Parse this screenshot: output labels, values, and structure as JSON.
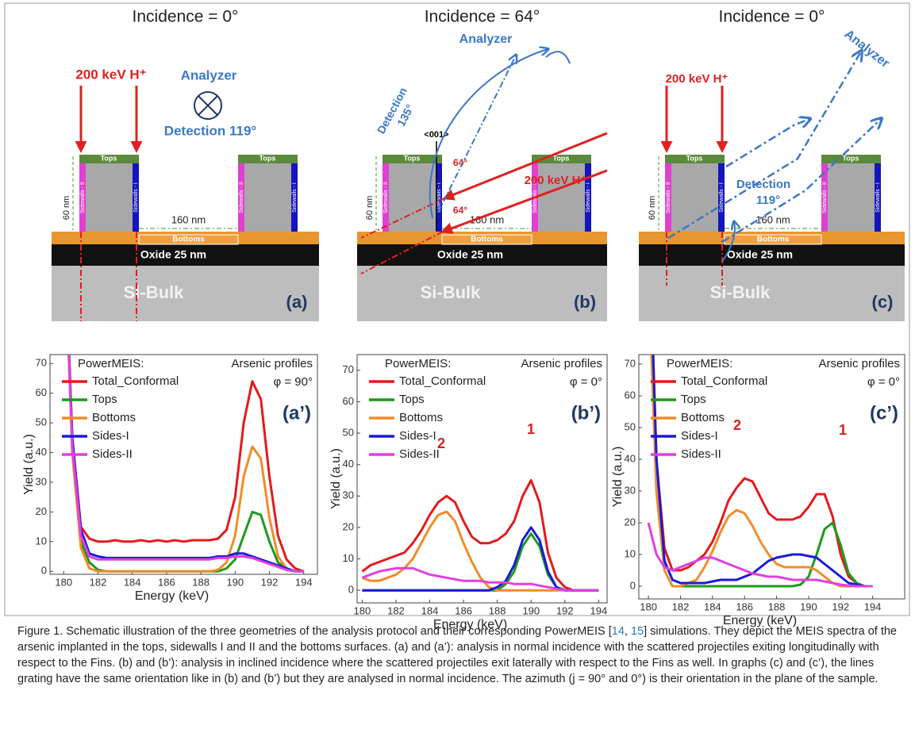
{
  "schematics": [
    {
      "incidence": "Incidence = 0°",
      "beam": "200 keV H⁺",
      "analyzer": "Analyzer",
      "detection": [
        "Detection 119°"
      ],
      "tops": [
        "Tops",
        "Tops"
      ],
      "sidewalls_1": [
        "Sidewalls - I",
        "Sidewalls - I"
      ],
      "sidewalls_2": [
        "Sidewalls - II",
        "Sidewalls - II"
      ],
      "height": "60 nm",
      "pitch": "160 nm",
      "bottoms": "Bottoms",
      "oxide": "Oxide 25 nm",
      "bulk": "Si-Bulk",
      "label": "(a)"
    },
    {
      "incidence": "Incidence = 64°",
      "beam": "200 keV H⁺",
      "analyzer": "Analyzer",
      "detection": [
        "Detection",
        "135°"
      ],
      "tops": [
        "Tops",
        "Tops"
      ],
      "sidewalls_1": [
        "Sidewalls - I",
        "Sidewalls - I"
      ],
      "sidewalls_2": [
        "Sidewalls - II",
        "Sidewalls - II"
      ],
      "height": "60 nm",
      "pitch": "160 nm",
      "bottoms": "Bottoms",
      "oxide": "Oxide 25 nm",
      "bulk": "Si-Bulk",
      "label": "(b)",
      "axis": "<001>",
      "angles": [
        "64°",
        "64°"
      ]
    },
    {
      "incidence": "Incidence = 0°",
      "beam": "200 keV H⁺",
      "analyzer": "Analyzer",
      "detection": [
        "Detection",
        "119°"
      ],
      "tops": [
        "Tops",
        "Tops"
      ],
      "sidewalls_1": [
        "Sidewalls - I",
        "Sidewalls - I"
      ],
      "sidewalls_2": [
        "Sidewalls - II",
        "Sidewalls - II"
      ],
      "height": "60 nm",
      "pitch": "160 nm",
      "bottoms": "Bottoms",
      "oxide": "Oxide 25 nm",
      "bulk": "Si-Bulk",
      "label": "(c)"
    }
  ],
  "chart_data": [
    {
      "type": "line",
      "x_label": "Energy (keV)",
      "y_label": "Yield (a.u.)",
      "legend_title": "PowerMEIS:",
      "legend_position": "upper left",
      "annotations": [
        "Arsenic profiles",
        "φ = 90°"
      ],
      "panel_label": "(a’)",
      "xlim": [
        179.2,
        194.8
      ],
      "ylim": [
        -1,
        73
      ],
      "xticks": [
        180,
        182,
        184,
        186,
        188,
        190,
        192,
        194
      ],
      "yticks": [
        0,
        10,
        20,
        30,
        40,
        50,
        60,
        70
      ],
      "x": [
        180,
        180.5,
        181,
        181.5,
        182,
        182.5,
        183,
        183.5,
        184,
        184.5,
        185,
        185.5,
        186,
        186.5,
        187,
        187.5,
        188,
        188.5,
        189,
        189.5,
        190,
        190.5,
        191,
        191.5,
        192,
        192.5,
        193,
        193.5,
        194
      ],
      "series": [
        {
          "name": "Total_Conformal",
          "color": "#e31a1c",
          "values": [
            120,
            45,
            15,
            11,
            10,
            10,
            10.5,
            10,
            10,
            10.5,
            10,
            10.5,
            10,
            10.5,
            10,
            10.5,
            10.5,
            10.5,
            11,
            14,
            25,
            50,
            64,
            58,
            32,
            12,
            4,
            1,
            0
          ]
        },
        {
          "name": "Tops",
          "color": "#1c9a1c",
          "values": [
            120,
            40,
            10,
            3,
            0.5,
            0,
            0,
            0,
            0,
            0,
            0,
            0,
            0,
            0,
            0,
            0,
            0,
            0,
            0,
            1,
            4,
            12,
            20,
            19,
            10,
            3,
            1,
            0,
            0
          ]
        },
        {
          "name": "Bottoms",
          "color": "#f28c28",
          "values": [
            120,
            40,
            8,
            1,
            0,
            0,
            0,
            0,
            0,
            0,
            0,
            0,
            0,
            0,
            0,
            0,
            0,
            0,
            0.5,
            3,
            12,
            32,
            42,
            38,
            18,
            5,
            1,
            0,
            0
          ]
        },
        {
          "name": "Sides-I",
          "color": "#1a1ad8",
          "values": [
            120,
            45,
            14,
            6,
            5,
            4.5,
            4.5,
            4.5,
            4.5,
            4.5,
            4.5,
            4.5,
            4.5,
            4.5,
            4.5,
            4.5,
            4.5,
            4.5,
            5,
            5,
            6,
            6,
            5,
            4,
            3,
            2,
            1,
            0,
            0
          ]
        },
        {
          "name": "Sides-II",
          "color": "#e040e0",
          "values": [
            120,
            42,
            12,
            5,
            4,
            4,
            4,
            4,
            4,
            4,
            4,
            4,
            4,
            4,
            4,
            4,
            4,
            4,
            4.5,
            4.5,
            5,
            5,
            4.5,
            3.5,
            2.5,
            1.5,
            0.5,
            0,
            0
          ]
        }
      ]
    },
    {
      "type": "line",
      "x_label": "Energy (keV)",
      "y_label": "Yield (a.u.)",
      "legend_title": "PowerMEIS:",
      "legend_position": "upper left",
      "annotations": [
        "Arsenic profiles",
        "φ = 0°"
      ],
      "panel_label": "(b’)",
      "peak_labels": [
        "2",
        "1"
      ],
      "xlim": [
        179.7,
        194.5
      ],
      "ylim": [
        -4,
        75
      ],
      "xticks": [
        180,
        182,
        184,
        186,
        188,
        190,
        192,
        194
      ],
      "yticks": [
        0,
        10,
        20,
        30,
        40,
        50,
        60,
        70
      ],
      "x": [
        180,
        180.5,
        181,
        181.5,
        182,
        182.5,
        183,
        183.5,
        184,
        184.5,
        185,
        185.5,
        186,
        186.5,
        187,
        187.5,
        188,
        188.5,
        189,
        189.5,
        190,
        190.5,
        191,
        191.5,
        192,
        192.5,
        193,
        193.5,
        194
      ],
      "series": [
        {
          "name": "Total_Conformal",
          "color": "#e31a1c",
          "values": [
            6,
            8,
            9,
            10,
            11,
            12,
            15,
            19,
            24,
            28,
            30,
            28,
            22,
            17,
            15,
            15,
            16,
            18,
            22,
            30,
            35,
            28,
            12,
            4,
            1,
            0,
            0,
            0,
            0
          ]
        },
        {
          "name": "Tops",
          "color": "#1c9a1c",
          "values": [
            0,
            0,
            0,
            0,
            0,
            0,
            0,
            0,
            0,
            0,
            0,
            0,
            0,
            0,
            0,
            0,
            0,
            2,
            6,
            14,
            18,
            14,
            5,
            1,
            0,
            0,
            0,
            0,
            0
          ]
        },
        {
          "name": "Bottoms",
          "color": "#f28c28",
          "values": [
            4,
            3,
            3,
            4,
            5,
            7,
            10,
            15,
            20,
            24,
            25,
            22,
            15,
            9,
            4,
            1,
            0,
            0,
            0,
            0,
            0,
            0,
            0,
            0,
            0,
            0,
            0,
            0,
            0
          ]
        },
        {
          "name": "Sides-I",
          "color": "#1a1ad8",
          "values": [
            0,
            0,
            0,
            0,
            0,
            0,
            0,
            0,
            0,
            0,
            0,
            0,
            0,
            0,
            0,
            0,
            1,
            3,
            8,
            16,
            20,
            16,
            6,
            1,
            0,
            0,
            0,
            0,
            0
          ]
        },
        {
          "name": "Sides-II",
          "color": "#e040e0",
          "values": [
            4,
            5,
            6,
            6.5,
            7,
            7,
            7,
            6,
            5,
            4.5,
            4,
            3.5,
            3,
            3,
            3,
            2.5,
            2.5,
            2.5,
            2,
            2,
            2,
            1.5,
            1,
            0.5,
            0,
            0,
            0,
            0,
            0
          ]
        }
      ]
    },
    {
      "type": "line",
      "x_label": "Energy (keV)",
      "y_label": "Yield (a.u.)",
      "legend_title": "PowerMEIS:",
      "legend_position": "upper left",
      "annotations": [
        "Arsenic profiles",
        "φ = 0°"
      ],
      "panel_label": "(c’)",
      "peak_labels": [
        "2",
        "1"
      ],
      "xlim": [
        179.4,
        196
      ],
      "ylim": [
        -4,
        73
      ],
      "xticks": [
        180,
        182,
        184,
        186,
        188,
        190,
        192,
        194
      ],
      "yticks": [
        0,
        10,
        20,
        30,
        40,
        50,
        60,
        70
      ],
      "x": [
        180,
        180.5,
        181,
        181.5,
        182,
        182.5,
        183,
        183.5,
        184,
        184.5,
        185,
        185.5,
        186,
        186.5,
        187,
        187.5,
        188,
        188.5,
        189,
        189.5,
        190,
        190.5,
        191,
        191.5,
        192,
        192.5,
        193,
        193.5,
        194
      ],
      "series": [
        {
          "name": "Total_Conformal",
          "color": "#e31a1c",
          "values": [
            120,
            40,
            12,
            5,
            5,
            6,
            8,
            10,
            14,
            20,
            27,
            31,
            34,
            33,
            28,
            23,
            21,
            21,
            21,
            22,
            25,
            29,
            29,
            22,
            10,
            3,
            1,
            0,
            0
          ]
        },
        {
          "name": "Tops",
          "color": "#1c9a1c",
          "values": [
            100,
            30,
            5,
            0,
            0,
            0,
            0,
            0,
            0,
            0,
            0,
            0,
            0,
            0,
            0,
            0,
            0,
            0,
            0,
            0.5,
            3,
            10,
            18,
            20,
            13,
            4,
            1,
            0,
            0
          ]
        },
        {
          "name": "Bottoms",
          "color": "#f28c28",
          "values": [
            100,
            30,
            5,
            0,
            0,
            1,
            2,
            6,
            11,
            17,
            22,
            24,
            23,
            19,
            14,
            10,
            7,
            6,
            6,
            6,
            6,
            5,
            3,
            1,
            0,
            0,
            0,
            0,
            0
          ]
        },
        {
          "name": "Sides-I",
          "color": "#1a1ad8",
          "values": [
            120,
            40,
            8,
            2,
            1,
            1,
            1,
            1,
            1.5,
            2,
            2,
            2,
            3,
            4,
            6,
            8,
            9,
            9.5,
            10,
            10,
            9.5,
            9,
            7,
            5,
            3,
            1,
            0.5,
            0,
            0
          ]
        },
        {
          "name": "Sides-II",
          "color": "#e040e0",
          "values": [
            20,
            10,
            6,
            5,
            6,
            7,
            8,
            9,
            9,
            8,
            7,
            6,
            5,
            4,
            3.5,
            3,
            3,
            2.5,
            2,
            2,
            2,
            2,
            1.5,
            1,
            0.5,
            0.2,
            0,
            0,
            0
          ]
        }
      ]
    }
  ],
  "caption": [
    "Figure 1. Schematic illustration of the three geometries of the analysis protocol and their corresponding PowerMEIS [",
    "14",
    ", ",
    "15",
    "] simulations. They depict the MEIS spectra of the arsenic implanted in the tops, sidewalls I and II and the bottoms surfaces. (a) and (a’): analysis in normal incidence with the scattered projectiles exiting longitudinally with respect to the Fins. (b) and (b’): analysis in inclined incidence where the scattered projectiles exit laterally with respect to the Fins as well. In graphs (c) and (c’), the lines grating have the same orientation like in (b) and (b’) but they are analysed in normal incidence. The azimuth (j = 90° and 0°) is their orientation in the plane of the sample."
  ]
}
